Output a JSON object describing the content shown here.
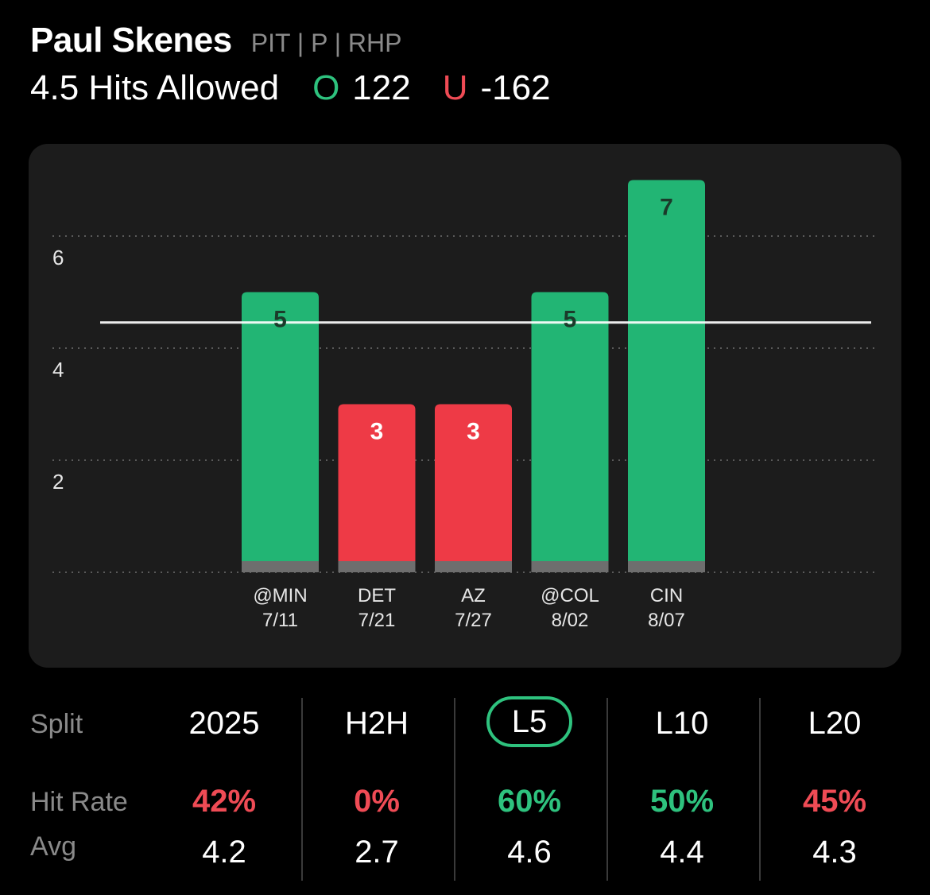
{
  "player": {
    "name": "Paul Skenes",
    "meta": "PIT | P | RHP"
  },
  "prop": {
    "label": "4.5 Hits Allowed",
    "over_letter": "O",
    "over_odds": "122",
    "under_letter": "U",
    "under_odds": "-162"
  },
  "colors": {
    "over": "#2ec27e",
    "under": "#ef4b55",
    "bar_over": "#22b574",
    "bar_under": "#ee3a46",
    "card": "#1c1c1c"
  },
  "chart_data": {
    "type": "bar",
    "categories": [
      "@MIN 7/11",
      "DET 7/21",
      "AZ 7/27",
      "@COL 8/02",
      "CIN 8/07"
    ],
    "opponents": [
      "@MIN",
      "DET",
      "AZ",
      "@COL",
      "CIN"
    ],
    "dates": [
      "7/11",
      "7/21",
      "7/27",
      "8/02",
      "8/07"
    ],
    "values": [
      5,
      3,
      3,
      5,
      7
    ],
    "value_labels": [
      "5",
      "3",
      "3",
      "5",
      "7"
    ],
    "line": 4.5,
    "yticks": [
      2,
      4,
      6
    ],
    "ytick_labels": [
      "2",
      "4",
      "6"
    ],
    "ylim": [
      0,
      7
    ],
    "grid": true,
    "title": "",
    "xlabel": "",
    "ylabel": ""
  },
  "stats": {
    "split_label": "Split",
    "hit_rate_label": "Hit Rate",
    "avg_label": "Avg",
    "columns": [
      {
        "label": "2025",
        "hit_rate": "42%",
        "avg": "4.2",
        "status": "under",
        "selected": false
      },
      {
        "label": "H2H",
        "hit_rate": "0%",
        "avg": "2.7",
        "status": "under",
        "selected": false
      },
      {
        "label": "L5",
        "hit_rate": "60%",
        "avg": "4.6",
        "status": "over",
        "selected": true
      },
      {
        "label": "L10",
        "hit_rate": "50%",
        "avg": "4.4",
        "status": "over",
        "selected": false
      },
      {
        "label": "L20",
        "hit_rate": "45%",
        "avg": "4.3",
        "status": "under",
        "selected": false
      }
    ]
  }
}
